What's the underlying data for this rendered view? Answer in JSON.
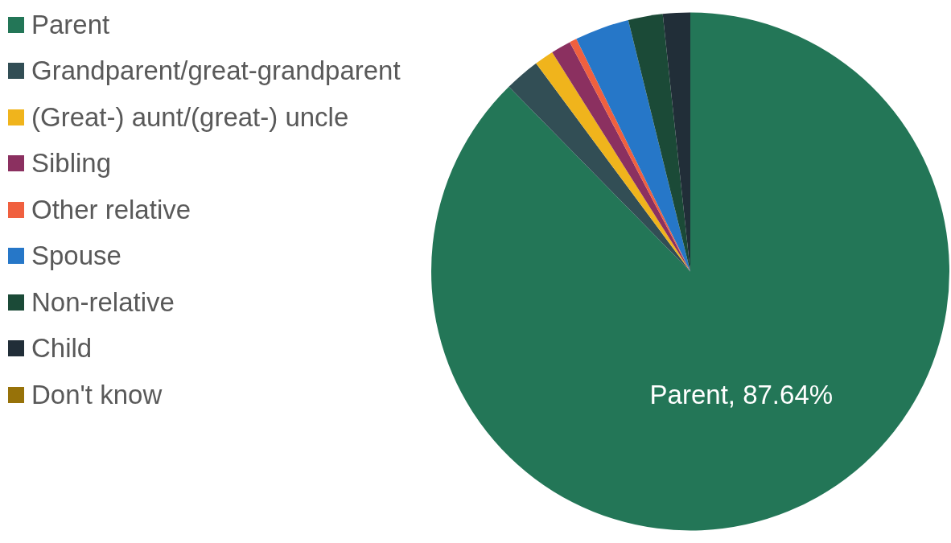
{
  "chart_data": {
    "type": "pie",
    "categories": [
      "Parent",
      "Grandparent/great-grandparent",
      "(Great-) aunt/(great-) uncle",
      "Sibling",
      "Other relative",
      "Spouse",
      "Non-relative",
      "Child",
      "Don't know"
    ],
    "values": [
      87.64,
      2.2,
      1.2,
      1.25,
      0.45,
      3.4,
      2.15,
      1.7,
      null
    ],
    "colors": [
      "#237657",
      "#324e55",
      "#f0b41c",
      "#8b3060",
      "#f0603f",
      "#2677c8",
      "#1b4a37",
      "#212e38",
      "#977209"
    ],
    "value_labels": [
      "Parent, 87.64%",
      null,
      null,
      null,
      null,
      null,
      null,
      null,
      null
    ],
    "legend": "left"
  }
}
